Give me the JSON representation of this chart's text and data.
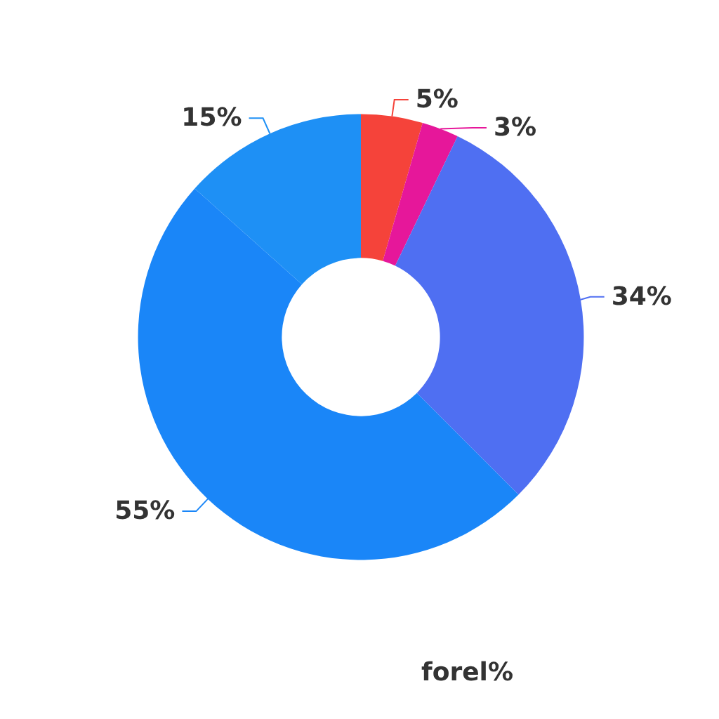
{
  "chart_data": {
    "type": "donut",
    "categories": [
      null,
      null,
      null,
      null,
      null
    ],
    "values": [
      5,
      3,
      34,
      55,
      15
    ],
    "colors": [
      "#f5433a",
      "#e6179a",
      "#4f6ff2",
      "#1a86f8",
      "#1e90f5"
    ],
    "value_labels": [
      "5%",
      "3%",
      "34%",
      "55%",
      "15%"
    ],
    "annotations": [
      "forel%"
    ]
  }
}
